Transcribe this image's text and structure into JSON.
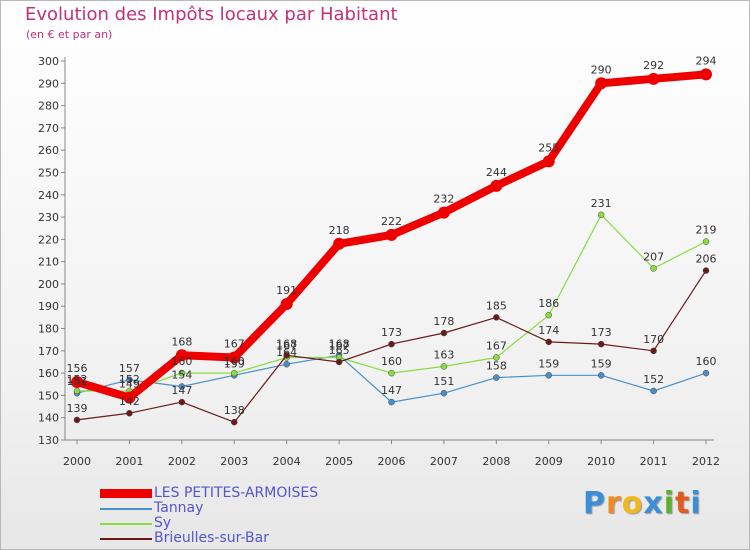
{
  "title": "Evolution des Impôts locaux par Habitant",
  "subtitle": "(en € et par an)",
  "brand": {
    "text": "Proxiti",
    "letters": [
      "P",
      "r",
      "o",
      "x",
      "i",
      "t",
      "i"
    ],
    "colors": [
      "#3a8fd8",
      "#f08a24",
      "#f0b81a",
      "#3a8fd8",
      "#5bb030",
      "#e05a20",
      "#3a8fd8"
    ]
  },
  "chart_data": {
    "type": "line",
    "title": "Evolution des Impôts locaux par Habitant",
    "subtitle": "(en € et par an)",
    "xlabel": "",
    "ylabel": "",
    "x": [
      "2000",
      "2001",
      "2002",
      "2003",
      "2004",
      "2005",
      "2006",
      "2007",
      "2008",
      "2009",
      "2010",
      "2011",
      "2012"
    ],
    "y_ticks": [
      "130",
      "140",
      "150",
      "160",
      "170",
      "180",
      "190",
      "200",
      "210",
      "220",
      "230",
      "240",
      "250",
      "260",
      "270",
      "280",
      "290",
      "300"
    ],
    "ylim": [
      130,
      300
    ],
    "grid": false,
    "legend_position": "bottom-left",
    "series": [
      {
        "name": "LES PETITES-ARMOISES",
        "color": "#ee0000",
        "values": [
          156,
          149,
          168,
          167,
          191,
          218,
          222,
          232,
          244,
          255,
          290,
          292,
          294
        ],
        "labels": [
          "156",
          "149",
          "168",
          "167",
          "191",
          "218",
          "222",
          "232",
          "244",
          "255",
          "290",
          "292",
          "294"
        ]
      },
      {
        "name": "Tannay",
        "color": "#4a90c8",
        "values": [
          151,
          157,
          154,
          159,
          164,
          168,
          147,
          151,
          158,
          159,
          159,
          152,
          160
        ],
        "labels": [
          "151",
          "157",
          "154",
          "159",
          "164",
          "168",
          "147",
          "151",
          "158",
          "159",
          "159",
          "152",
          "160"
        ]
      },
      {
        "name": "Sy",
        "color": "#88dd44",
        "values": [
          152,
          152,
          160,
          160,
          167,
          167,
          160,
          163,
          167,
          186,
          231,
          207,
          219
        ],
        "labels": [
          "152",
          "152",
          "160",
          "160",
          "167",
          "167",
          "160",
          "163",
          "167",
          "186",
          "231",
          "207",
          "219"
        ]
      },
      {
        "name": "Brieulles-sur-Bar",
        "color": "#6b1a1a",
        "values": [
          139,
          142,
          147,
          138,
          168,
          165,
          173,
          178,
          185,
          174,
          173,
          170,
          206
        ],
        "labels": [
          "139",
          "142",
          "147",
          "138",
          "168",
          "165",
          "173",
          "178",
          "185",
          "174",
          "173",
          "170",
          "206"
        ]
      }
    ]
  },
  "legend": [
    {
      "label": "LES PETITES-ARMOISES",
      "color": "#ee0000"
    },
    {
      "label": "Tannay",
      "color": "#4a90c8"
    },
    {
      "label": "Sy",
      "color": "#88dd44"
    },
    {
      "label": "Brieulles-sur-Bar",
      "color": "#6b1a1a"
    }
  ]
}
